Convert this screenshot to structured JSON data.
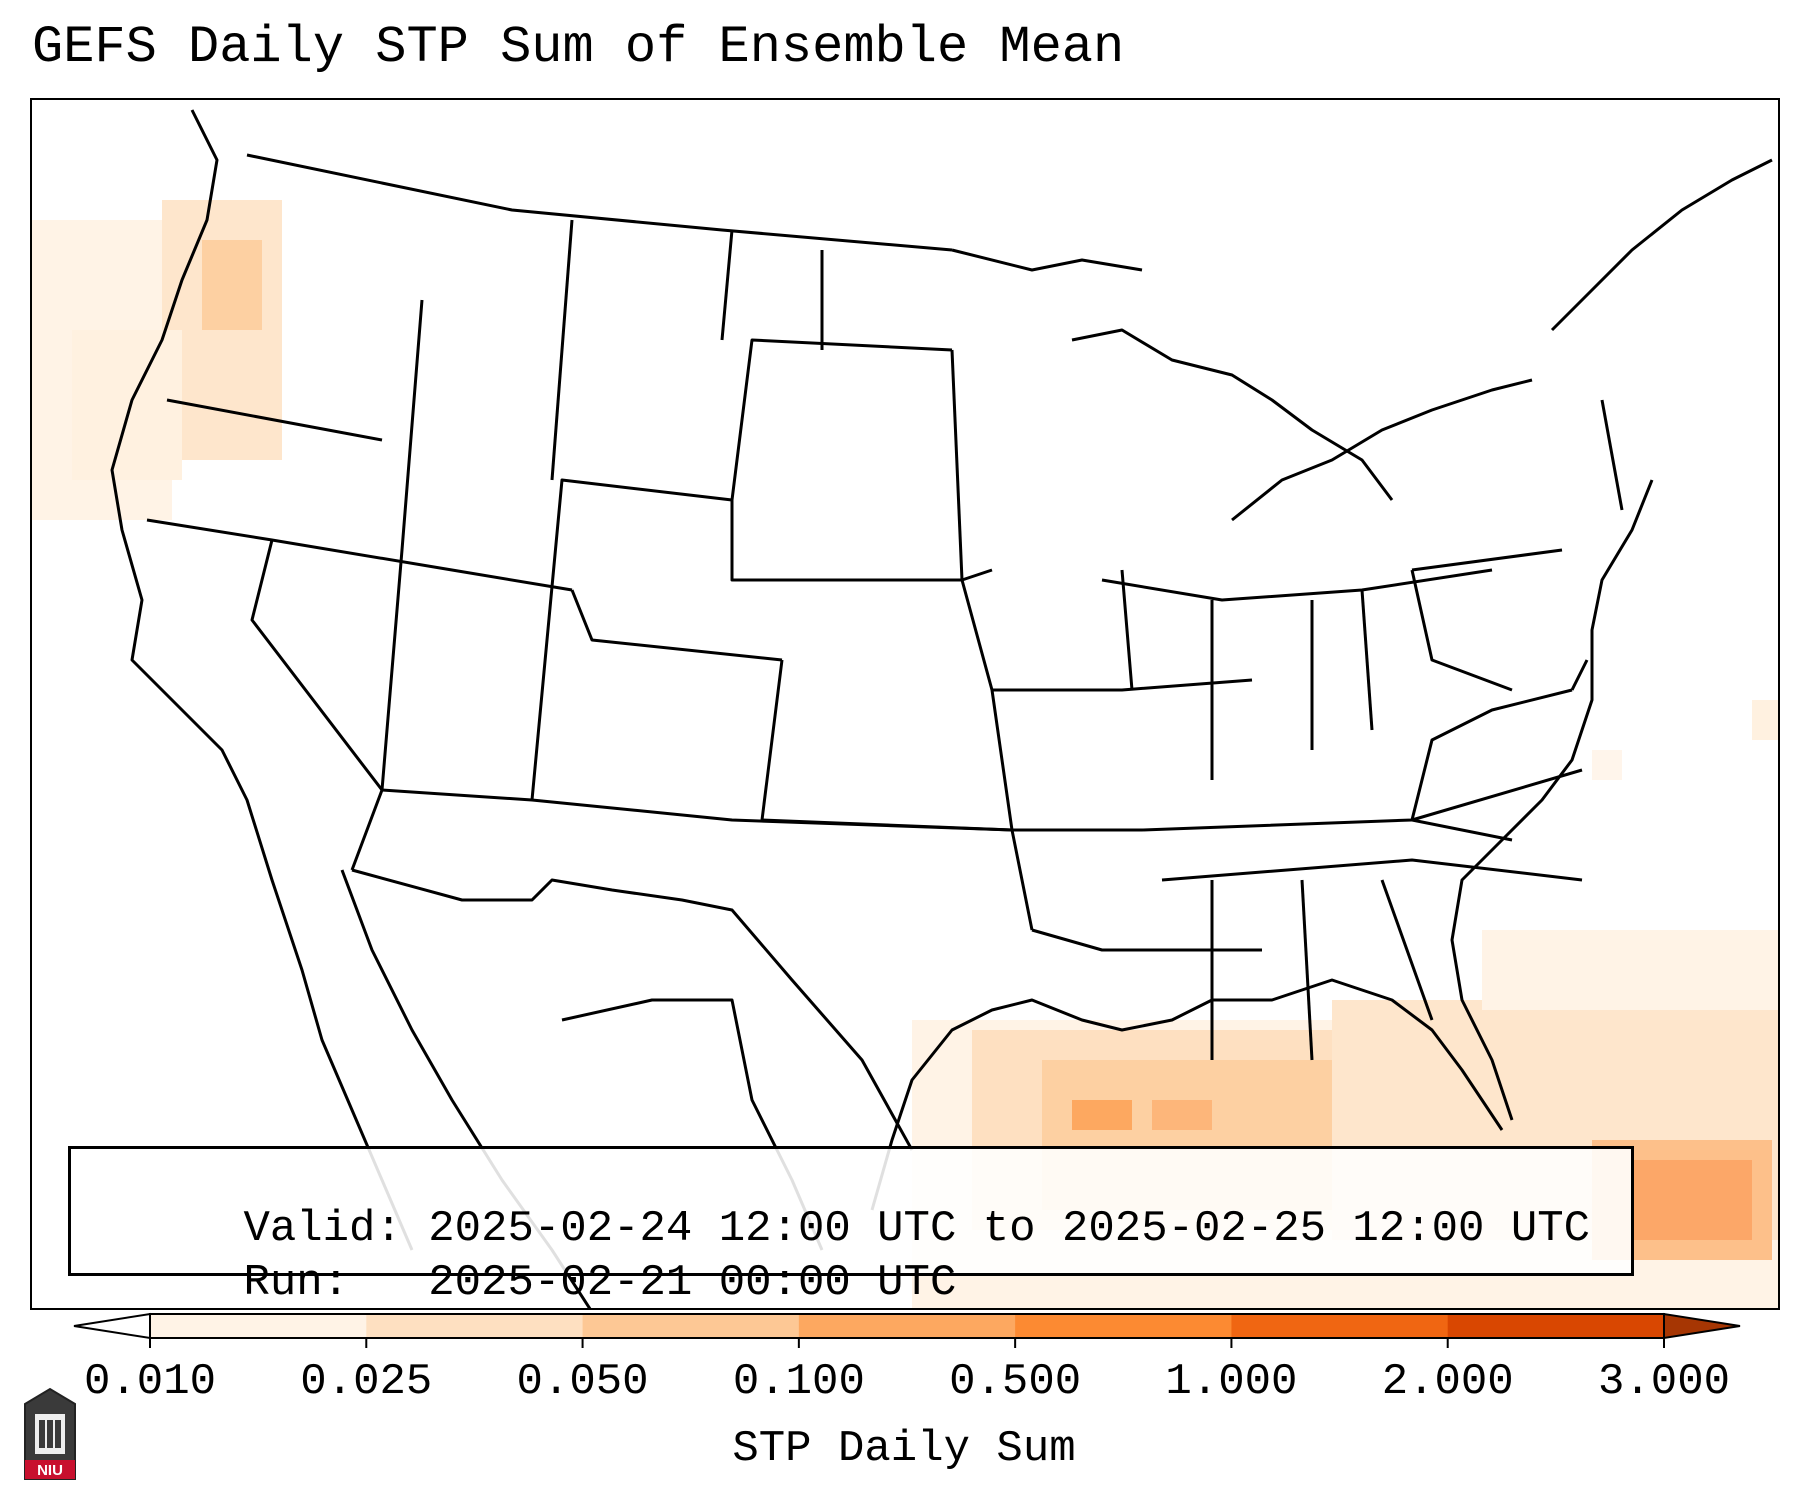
{
  "title": "GEFS Daily STP Sum of Ensemble Mean",
  "info": {
    "valid_label": "Valid:",
    "valid_value": "2025-02-24 12:00 UTC to 2025-02-25 12:00 UTC",
    "run_label": "Run:",
    "run_value": "2025-02-21 00:00 UTC"
  },
  "colorbar": {
    "label": "STP Daily Sum",
    "ticks": [
      "0.010",
      "0.025",
      "0.050",
      "0.100",
      "0.500",
      "1.000",
      "2.000",
      "3.000"
    ],
    "colors": [
      "#fff3e6",
      "#fee0c1",
      "#fdc895",
      "#fda860",
      "#fc8a32",
      "#f06612",
      "#d94701",
      "#a63603"
    ],
    "extend": "both"
  },
  "logo": {
    "text": "NIU"
  }
}
